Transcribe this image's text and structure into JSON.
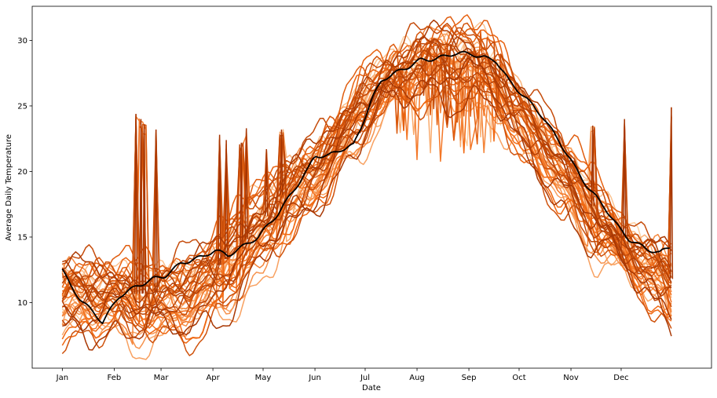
{
  "chart_data": {
    "type": "line",
    "xlabel": "Date",
    "ylabel": "Average Daily Temperature",
    "x_domain_day_of_year": [
      1,
      365
    ],
    "xlim_day_of_year": [
      -17,
      389
    ],
    "ylim": [
      5.0,
      32.6
    ],
    "x_ticks": [
      {
        "day": 1,
        "label": "Jan"
      },
      {
        "day": 32,
        "label": "Feb"
      },
      {
        "day": 60,
        "label": "Mar"
      },
      {
        "day": 91,
        "label": "Apr"
      },
      {
        "day": 121,
        "label": "May"
      },
      {
        "day": 152,
        "label": "Jun"
      },
      {
        "day": 182,
        "label": "Jul"
      },
      {
        "day": 213,
        "label": "Aug"
      },
      {
        "day": 244,
        "label": "Sep"
      },
      {
        "day": 274,
        "label": "Oct"
      },
      {
        "day": 305,
        "label": "Nov"
      },
      {
        "day": 335,
        "label": "Dec"
      }
    ],
    "y_ticks": [
      10,
      15,
      20,
      25,
      30
    ],
    "grid": false,
    "legend": "none",
    "colormap": "Oranges",
    "colors": {
      "highlight": "#000000",
      "dark": "#a63603",
      "light": "#fdd0a2",
      "spine": "#000000"
    },
    "approx_series_count": 45,
    "highlight_series": {
      "color": "#000000",
      "points": [
        [
          1,
          12.5
        ],
        [
          5,
          11.5
        ],
        [
          12,
          10.2
        ],
        [
          20,
          9.2
        ],
        [
          25,
          8.5
        ],
        [
          30,
          9.5
        ],
        [
          35,
          10.5
        ],
        [
          45,
          11.2
        ],
        [
          55,
          11.8
        ],
        [
          62,
          12.0
        ],
        [
          72,
          13.0
        ],
        [
          85,
          13.5
        ],
        [
          92,
          14.0
        ],
        [
          100,
          13.6
        ],
        [
          108,
          14.2
        ],
        [
          118,
          15.0
        ],
        [
          130,
          16.8
        ],
        [
          140,
          18.7
        ],
        [
          148,
          20.2
        ],
        [
          152,
          21.2
        ],
        [
          160,
          21.2
        ],
        [
          168,
          21.7
        ],
        [
          175,
          22.0
        ],
        [
          180,
          23.5
        ],
        [
          186,
          25.5
        ],
        [
          192,
          27.0
        ],
        [
          200,
          27.5
        ],
        [
          208,
          28.0
        ],
        [
          215,
          28.5
        ],
        [
          225,
          28.6
        ],
        [
          235,
          29.0
        ],
        [
          245,
          29.0
        ],
        [
          252,
          28.7
        ],
        [
          260,
          28.5
        ],
        [
          268,
          26.9
        ],
        [
          278,
          25.6
        ],
        [
          288,
          24.2
        ],
        [
          298,
          22.3
        ],
        [
          306,
          20.6
        ],
        [
          315,
          18.8
        ],
        [
          325,
          17.3
        ],
        [
          333,
          15.8
        ],
        [
          340,
          14.8
        ],
        [
          350,
          14.1
        ],
        [
          358,
          13.8
        ],
        [
          365,
          14.3
        ]
      ]
    },
    "typical_envelope": {
      "low": [
        [
          1,
          7.0
        ],
        [
          15,
          7.3
        ],
        [
          30,
          7.5
        ],
        [
          45,
          7.0
        ],
        [
          60,
          6.6
        ],
        [
          75,
          7.0
        ],
        [
          91,
          8.0
        ],
        [
          105,
          9.5
        ],
        [
          121,
          11.5
        ],
        [
          135,
          14.5
        ],
        [
          152,
          17.0
        ],
        [
          166,
          19.5
        ],
        [
          182,
          22.5
        ],
        [
          198,
          24.5
        ],
        [
          213,
          25.5
        ],
        [
          230,
          25.3
        ],
        [
          244,
          25.0
        ],
        [
          260,
          23.6
        ],
        [
          274,
          21.0
        ],
        [
          290,
          18.6
        ],
        [
          305,
          15.8
        ],
        [
          320,
          13.6
        ],
        [
          335,
          12.0
        ],
        [
          350,
          10.5
        ],
        [
          365,
          7.3
        ]
      ],
      "high": [
        [
          1,
          13.5
        ],
        [
          15,
          13.4
        ],
        [
          30,
          12.6
        ],
        [
          45,
          12.3
        ],
        [
          60,
          13.0
        ],
        [
          75,
          14.0
        ],
        [
          91,
          14.8
        ],
        [
          105,
          16.5
        ],
        [
          121,
          19.0
        ],
        [
          135,
          21.0
        ],
        [
          152,
          22.5
        ],
        [
          166,
          24.0
        ],
        [
          182,
          27.0
        ],
        [
          198,
          29.0
        ],
        [
          213,
          30.5
        ],
        [
          225,
          31.0
        ],
        [
          244,
          30.5
        ],
        [
          260,
          29.8
        ],
        [
          274,
          27.0
        ],
        [
          290,
          24.4
        ],
        [
          305,
          21.5
        ],
        [
          320,
          18.4
        ],
        [
          335,
          16.2
        ],
        [
          350,
          15.0
        ],
        [
          365,
          14.3
        ]
      ]
    },
    "spikes": [
      {
        "day": 45,
        "peak": 24.4
      },
      {
        "day": 48,
        "peak": 24.0
      },
      {
        "day": 50,
        "peak": 23.6
      },
      {
        "day": 57,
        "peak": 23.2
      },
      {
        "day": 95,
        "peak": 22.8
      },
      {
        "day": 99,
        "peak": 22.4
      },
      {
        "day": 108,
        "peak": 22.2
      },
      {
        "day": 111,
        "peak": 23.3
      },
      {
        "day": 123,
        "peak": 21.7
      },
      {
        "day": 132,
        "peak": 23.2
      },
      {
        "day": 318,
        "peak": 23.5
      },
      {
        "day": 337,
        "peak": 24.0
      },
      {
        "day": 365,
        "peak": 24.9
      }
    ]
  }
}
